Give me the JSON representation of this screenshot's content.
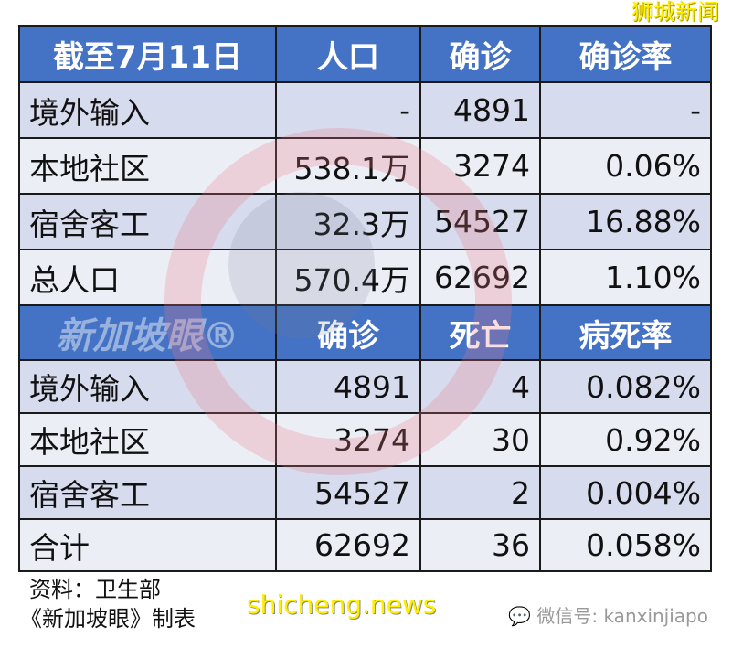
{
  "table1": {
    "header": [
      "截至7月11日",
      "人口",
      "确诊",
      "确诊率"
    ],
    "rows": [
      [
        "境外输入",
        "-",
        "4891",
        "-"
      ],
      [
        "本地社区",
        "538.1万",
        "3274",
        "0.06%"
      ],
      [
        "宿舍客工",
        "32.3万",
        "54527",
        "16.88%"
      ],
      [
        "总人口",
        "570.4万",
        "62692",
        "1.10%"
      ]
    ]
  },
  "table2": {
    "header": [
      "",
      "确诊",
      "死亡",
      "病死率"
    ],
    "rows": [
      [
        "境外输入",
        "4891",
        "4",
        "0.082%"
      ],
      [
        "本地社区",
        "3274",
        "30",
        "0.92%"
      ],
      [
        "宿舍客工",
        "54527",
        "2",
        "0.004%"
      ],
      [
        "合计",
        "62692",
        "36",
        "0.058%"
      ]
    ]
  },
  "colors": {
    "header": "#4472c4",
    "row_dark": "#cfd5ea",
    "row_light": "#e9ebf5"
  },
  "watermark": "新加坡眼®",
  "logo": "狮城新闻",
  "source": "资料：卫生部",
  "made_by": "《新加坡眼》制表",
  "wechat": "微信号: kanxinjiapo",
  "site": "shicheng.news"
}
